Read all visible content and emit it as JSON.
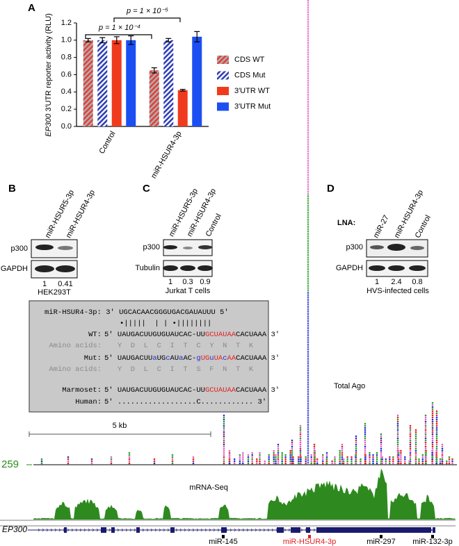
{
  "chart_data": {
    "type": "bar",
    "panel": "A",
    "y_label_italic": "EP300",
    "y_label": "3′UTR reporter activity (RLU)",
    "categories": [
      "Control",
      "miR-HSUR4-3p"
    ],
    "series": [
      {
        "name": "CDS WT",
        "color": "#e0413a",
        "pattern": "hatch",
        "values": [
          1.0,
          0.65
        ],
        "errors": [
          0.02,
          0.03
        ]
      },
      {
        "name": "CDS Mut",
        "color": "#2f3fb5",
        "pattern": "hatch",
        "values": [
          1.0,
          1.0
        ],
        "errors": [
          0.03,
          0.02
        ]
      },
      {
        "name": "3′UTR WT",
        "color": "#f03a1e",
        "pattern": "solid",
        "values": [
          1.0,
          0.42
        ],
        "errors": [
          0.04,
          0.01
        ]
      },
      {
        "name": "3′UTR Mut",
        "color": "#1c4ff2",
        "pattern": "solid",
        "values": [
          1.0,
          1.04
        ],
        "errors": [
          0.05,
          0.06
        ]
      }
    ],
    "ylim": [
      0,
      1.2
    ],
    "yticks": [
      {
        "value": 0,
        "label": "0.0"
      },
      {
        "value": 0.2,
        "label": "0.2"
      },
      {
        "value": 0.4,
        "label": "0.4"
      },
      {
        "value": 0.6,
        "label": "0.6"
      },
      {
        "value": 0.8,
        "label": "0.8"
      },
      {
        "value": 1.0,
        "label": "1.0"
      },
      {
        "value": 1.2,
        "label": "1.2"
      }
    ],
    "annotations": [
      "p = 1 × 10⁻⁴",
      "p = 1 × 10⁻⁵"
    ]
  },
  "panels": {
    "B": {
      "label": "B",
      "lanes": [
        "miR-HSUR5-3p",
        "miR-HSUR4-3p"
      ],
      "rows": [
        "p300",
        "GAPDH"
      ],
      "quant": [
        "1",
        "0.41"
      ],
      "cells": "HEK293T"
    },
    "C": {
      "label": "C",
      "lanes": [
        "miR-HSUR5-3p",
        "miR-HSUR4-3p",
        "Control"
      ],
      "rows": [
        "p300",
        "Tubulin"
      ],
      "quant": [
        "1",
        "0.3",
        "0.9"
      ],
      "cells": "Jurkat T cells"
    },
    "D": {
      "label": "D",
      "lna": "LNA:",
      "lanes": [
        "miR-27",
        "miR-HSUR4-3p",
        "Control"
      ],
      "rows": [
        "p300",
        "GAPDH"
      ],
      "quant": [
        "1",
        "2.4",
        "0.8"
      ],
      "cells": "HVS-infected cells"
    }
  },
  "sequence_box": {
    "mirna": "miR-HSUR4-3p: 3′ UGCACAACGGGUGACGAUAUUU 5′",
    "pairing": "•|||||  | | •||||||||",
    "lines": [
      {
        "label": "WT:",
        "color": "#000000",
        "segments": [
          {
            "text": "5′ UAUGACUUGUGUAUCAC-UU",
            "color": "#000000"
          },
          {
            "text": "GCUAUAA",
            "color": "#e02020"
          },
          {
            "text": "CACUAAA 3′",
            "color": "#000000"
          }
        ]
      },
      {
        "label": "Amino acids:",
        "color": "#8a8a8a",
        "segments": [
          {
            "text": "   Y  D  L  C  I  T  C  Y  N  T  K",
            "color": "#8a8a8a"
          }
        ]
      },
      {
        "label": "Mut:",
        "color": "#000000",
        "segments": [
          {
            "text": "5′ UAUGACUU",
            "color": "#000000"
          },
          {
            "text": "a",
            "color": "#2030d0"
          },
          {
            "text": "UG",
            "color": "#000000"
          },
          {
            "text": "c",
            "color": "#2030d0"
          },
          {
            "text": "AU",
            "color": "#000000"
          },
          {
            "text": "a",
            "color": "#2030d0"
          },
          {
            "text": "AC-",
            "color": "#000000"
          },
          {
            "text": "g",
            "color": "#2030d0"
          },
          {
            "text": "UG",
            "color": "#e02020"
          },
          {
            "text": "u",
            "color": "#2030d0"
          },
          {
            "text": "UA",
            "color": "#e02020"
          },
          {
            "text": "c",
            "color": "#2030d0"
          },
          {
            "text": "AA",
            "color": "#e02020"
          },
          {
            "text": "CACUAAA 3′",
            "color": "#000000"
          }
        ]
      },
      {
        "label": "Amino acids:",
        "color": "#8a8a8a",
        "segments": [
          {
            "text": "   Y  D  L  C  I  T  S  F  N  T  K",
            "color": "#8a8a8a"
          }
        ]
      },
      {
        "label": "Marmoset:",
        "color": "#000000",
        "segments": [
          {
            "text": "5′ UAUGACUUGUGUAUCAC-UU",
            "color": "#000000"
          },
          {
            "text": "GCUAUAA",
            "color": "#e02020"
          },
          {
            "text": "CACUAAA 3′",
            "color": "#000000"
          }
        ]
      },
      {
        "label": "Human:",
        "color": "#000000",
        "segments": [
          {
            "text": "5′ ..................C............ 3′",
            "color": "#000000"
          }
        ]
      }
    ]
  },
  "tracks": {
    "scale": "5 kb",
    "ago_label": "Total Ago",
    "ago_max": "259",
    "mrna_label": "mRNA-Seq",
    "gene": "EP300",
    "mirnas": [
      {
        "text": "miR-145",
        "color": "#000000"
      },
      {
        "text": "miR-HSUR4-3p",
        "color": "#e02020"
      },
      {
        "text": "miR-297",
        "color": "#000000"
      },
      {
        "text": "miR-132-3p",
        "color": "#000000"
      }
    ]
  }
}
